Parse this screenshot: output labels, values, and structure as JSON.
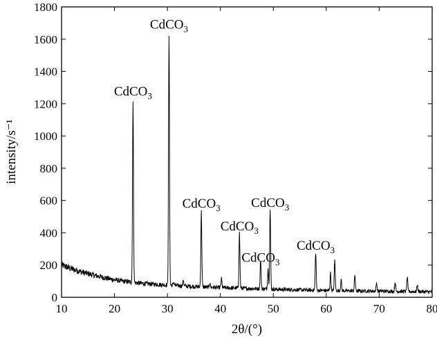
{
  "chart_data": {
    "type": "line",
    "title": "",
    "xlabel": "2θ/(°)",
    "ylabel": "intensity/s⁻¹",
    "xlim": [
      10,
      80
    ],
    "ylim": [
      0,
      1800
    ],
    "xticks": [
      10,
      20,
      30,
      40,
      50,
      60,
      70,
      80
    ],
    "yticks": [
      0,
      200,
      400,
      600,
      800,
      1000,
      1200,
      1400,
      1600,
      1800
    ],
    "grid": false,
    "legend": "none",
    "line_color": "#000000",
    "baseline": [
      [
        10,
        200
      ],
      [
        12,
        175
      ],
      [
        14,
        155
      ],
      [
        16,
        138
      ],
      [
        18,
        122
      ],
      [
        20,
        108
      ],
      [
        22,
        98
      ],
      [
        24,
        90
      ],
      [
        26,
        84
      ],
      [
        28,
        80
      ],
      [
        30,
        76
      ],
      [
        32,
        72
      ],
      [
        34,
        68
      ],
      [
        36,
        65
      ],
      [
        38,
        62
      ],
      [
        40,
        60
      ],
      [
        42,
        58
      ],
      [
        45,
        55
      ],
      [
        50,
        50
      ],
      [
        55,
        46
      ],
      [
        60,
        42
      ],
      [
        65,
        40
      ],
      [
        70,
        38
      ],
      [
        75,
        36
      ],
      [
        80,
        34
      ]
    ],
    "peaks": [
      {
        "x": 23.5,
        "y": 1210,
        "label": "CdCO3"
      },
      {
        "x": 30.3,
        "y": 1625,
        "label": "CdCO3"
      },
      {
        "x": 36.4,
        "y": 530,
        "label": "CdCO3"
      },
      {
        "x": 43.6,
        "y": 400,
        "label": "CdCO3"
      },
      {
        "x": 47.6,
        "y": 230,
        "label": "CdCO3"
      },
      {
        "x": 49.4,
        "y": 545,
        "label": "CdCO3"
      },
      {
        "x": 58.0,
        "y": 280,
        "label": "CdCO3"
      }
    ],
    "minor_peaks": [
      {
        "x": 31.2,
        "y": 95
      },
      {
        "x": 33.0,
        "y": 110
      },
      {
        "x": 38.0,
        "y": 90
      },
      {
        "x": 40.2,
        "y": 115
      },
      {
        "x": 49.0,
        "y": 180
      },
      {
        "x": 60.8,
        "y": 150
      },
      {
        "x": 61.6,
        "y": 230
      },
      {
        "x": 62.8,
        "y": 110
      },
      {
        "x": 65.4,
        "y": 140
      },
      {
        "x": 69.5,
        "y": 90
      },
      {
        "x": 73.0,
        "y": 95
      },
      {
        "x": 75.3,
        "y": 125
      },
      {
        "x": 77.2,
        "y": 75
      }
    ],
    "annotations": [
      {
        "text": "CdCO",
        "sub": "3",
        "x": 23.5,
        "y": 1250
      },
      {
        "text": "CdCO",
        "sub": "3",
        "x": 30.3,
        "y": 1665
      },
      {
        "text": "CdCO",
        "sub": "3",
        "x": 36.4,
        "y": 555
      },
      {
        "text": "CdCO",
        "sub": "3",
        "x": 43.6,
        "y": 415
      },
      {
        "text": "CdCO",
        "sub": "3",
        "x": 47.6,
        "y": 220
      },
      {
        "text": "CdCO",
        "sub": "3",
        "x": 49.4,
        "y": 560
      },
      {
        "text": "CdCO",
        "sub": "3",
        "x": 58.0,
        "y": 295
      }
    ]
  }
}
